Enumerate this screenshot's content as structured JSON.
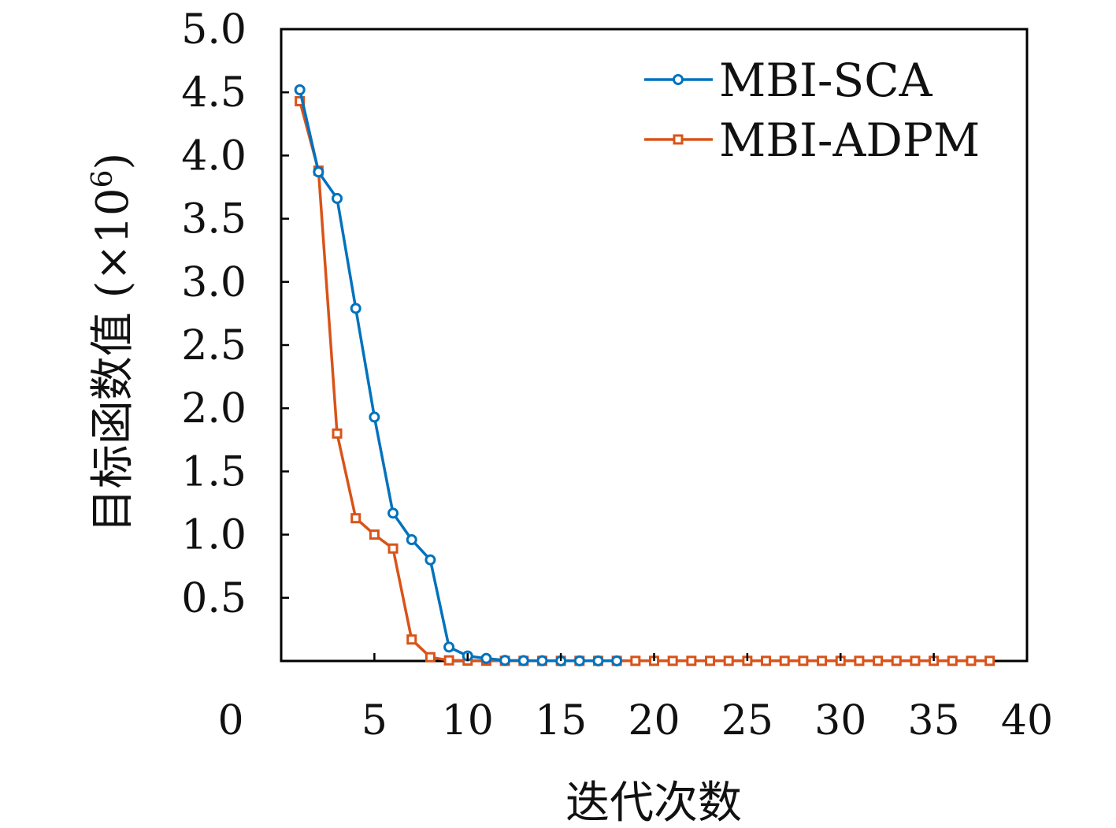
{
  "chart_data": {
    "type": "line",
    "xlabel": "迭代次数",
    "ylabel_main": "目标函数值",
    "ylabel_factor": "(×10",
    "ylabel_exp": "6",
    "ylabel_close": ")",
    "xlim": [
      0,
      40
    ],
    "ylim": [
      0,
      5.0
    ],
    "xticks": [
      0,
      5,
      10,
      15,
      20,
      25,
      30,
      35,
      40
    ],
    "xtick_labels": [
      "0",
      "5",
      "10",
      "15",
      "20",
      "25",
      "30",
      "35",
      "40"
    ],
    "yticks": [
      0.5,
      1.0,
      1.5,
      2.0,
      2.5,
      3.0,
      3.5,
      4.0,
      4.5,
      5.0
    ],
    "ytick_labels": [
      "0.5",
      "1.0",
      "1.5",
      "2.0",
      "2.5",
      "3.0",
      "3.5",
      "4.0",
      "4.5",
      "5.0"
    ],
    "legend_position": "top-right",
    "grid": false,
    "series": [
      {
        "name": "MBI-SCA",
        "color": "#0072BD",
        "marker": "circle",
        "x": [
          1,
          2,
          3,
          4,
          5,
          6,
          7,
          8,
          9,
          10,
          11,
          12,
          13,
          14,
          15,
          16,
          17,
          18
        ],
        "y": [
          4.52,
          3.87,
          3.66,
          2.79,
          1.93,
          1.17,
          0.96,
          0.8,
          0.11,
          0.04,
          0.02,
          0.005,
          0.003,
          0.002,
          0.001,
          0.001,
          0.001,
          0.001
        ]
      },
      {
        "name": "MBI-ADPM",
        "color": "#D95319",
        "marker": "square",
        "x": [
          1,
          2,
          3,
          4,
          5,
          6,
          7,
          8,
          9,
          10,
          11,
          12,
          13,
          14,
          15,
          16,
          17,
          18,
          19,
          20,
          21,
          22,
          23,
          24,
          25,
          26,
          27,
          28,
          29,
          30,
          31,
          32,
          33,
          34,
          35,
          36,
          37,
          38
        ],
        "y": [
          4.43,
          3.88,
          1.8,
          1.13,
          1.0,
          0.89,
          0.17,
          0.03,
          0.005,
          0.003,
          0.002,
          0.001,
          0.001,
          0.001,
          0.001,
          0.001,
          0.001,
          0.001,
          0.001,
          0.001,
          0.001,
          0.001,
          0.001,
          0.001,
          0.001,
          0.001,
          0.001,
          0.001,
          0.001,
          0.001,
          0.001,
          0.001,
          0.001,
          0.001,
          0.001,
          0.001,
          0.001,
          0.001
        ]
      }
    ]
  }
}
